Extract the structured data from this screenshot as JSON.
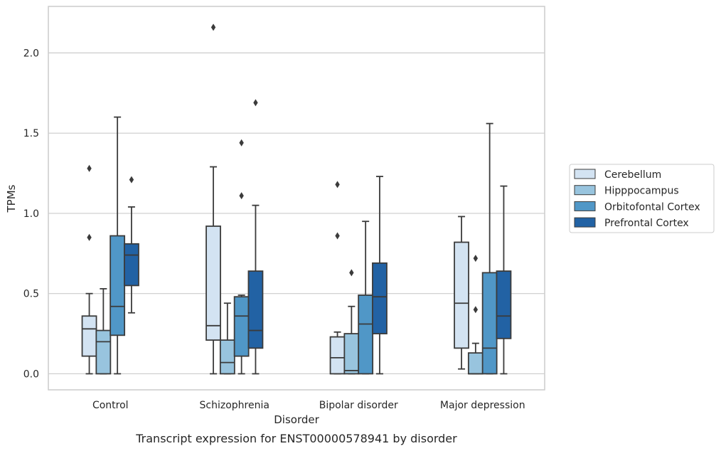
{
  "chart_data": {
    "type": "box",
    "title": "",
    "caption": "Transcript expression for ENST00000578941 by disorder",
    "xlabel": "Disorder",
    "ylabel": "TPMs",
    "ylim": [
      -0.1,
      2.29
    ],
    "yticks": [
      "0.0",
      "0.5",
      "1.0",
      "1.5",
      "2.0"
    ],
    "ytick_values": [
      0.0,
      0.5,
      1.0,
      1.5,
      2.0
    ],
    "grid": true,
    "legend_position": "right",
    "categories": [
      "Control",
      "Schizophrenia",
      "Bipolar disorder",
      "Major depression"
    ],
    "series": [
      {
        "name": "Cerebellum",
        "color": "#d3e3f2",
        "boxes": [
          {
            "q1": 0.11,
            "median": 0.28,
            "q3": 0.36,
            "whisker_low": 0.0,
            "whisker_high": 0.5,
            "outliers": [
              0.85,
              1.28
            ]
          },
          {
            "q1": 0.21,
            "median": 0.3,
            "q3": 0.92,
            "whisker_low": 0.0,
            "whisker_high": 1.29,
            "outliers": [
              2.16
            ]
          },
          {
            "q1": 0.0,
            "median": 0.1,
            "q3": 0.23,
            "whisker_low": 0.0,
            "whisker_high": 0.26,
            "outliers": [
              0.86,
              1.18
            ]
          },
          {
            "q1": 0.16,
            "median": 0.44,
            "q3": 0.82,
            "whisker_low": 0.03,
            "whisker_high": 0.98,
            "outliers": []
          }
        ]
      },
      {
        "name": "Hipppocampus",
        "color": "#98c4de",
        "boxes": [
          {
            "q1": 0.0,
            "median": 0.2,
            "q3": 0.27,
            "whisker_low": 0.0,
            "whisker_high": 0.53,
            "outliers": []
          },
          {
            "q1": 0.0,
            "median": 0.07,
            "q3": 0.21,
            "whisker_low": 0.0,
            "whisker_high": 0.44,
            "outliers": []
          },
          {
            "q1": 0.0,
            "median": 0.02,
            "q3": 0.25,
            "whisker_low": 0.0,
            "whisker_high": 0.42,
            "outliers": [
              0.63
            ]
          },
          {
            "q1": 0.0,
            "median": 0.0,
            "q3": 0.13,
            "whisker_low": 0.0,
            "whisker_high": 0.19,
            "outliers": [
              0.4,
              0.72
            ]
          }
        ]
      },
      {
        "name": "Orbitofontal Cortex",
        "color": "#5097c7",
        "boxes": [
          {
            "q1": 0.24,
            "median": 0.42,
            "q3": 0.86,
            "whisker_low": 0.0,
            "whisker_high": 1.6,
            "outliers": []
          },
          {
            "q1": 0.11,
            "median": 0.36,
            "q3": 0.48,
            "whisker_low": 0.0,
            "whisker_high": 0.49,
            "outliers": [
              1.11,
              1.44
            ]
          },
          {
            "q1": 0.0,
            "median": 0.31,
            "q3": 0.49,
            "whisker_low": 0.0,
            "whisker_high": 0.95,
            "outliers": []
          },
          {
            "q1": 0.0,
            "median": 0.16,
            "q3": 0.63,
            "whisker_low": 0.0,
            "whisker_high": 1.56,
            "outliers": []
          }
        ]
      },
      {
        "name": "Prefrontal Cortex",
        "color": "#2262a4",
        "boxes": [
          {
            "q1": 0.55,
            "median": 0.74,
            "q3": 0.81,
            "whisker_low": 0.38,
            "whisker_high": 1.04,
            "outliers": [
              1.21
            ]
          },
          {
            "q1": 0.16,
            "median": 0.27,
            "q3": 0.64,
            "whisker_low": 0.0,
            "whisker_high": 1.05,
            "outliers": [
              1.69
            ]
          },
          {
            "q1": 0.25,
            "median": 0.48,
            "q3": 0.69,
            "whisker_low": 0.0,
            "whisker_high": 1.23,
            "outliers": []
          },
          {
            "q1": 0.22,
            "median": 0.36,
            "q3": 0.64,
            "whisker_low": 0.0,
            "whisker_high": 1.17,
            "outliers": []
          }
        ]
      }
    ]
  }
}
